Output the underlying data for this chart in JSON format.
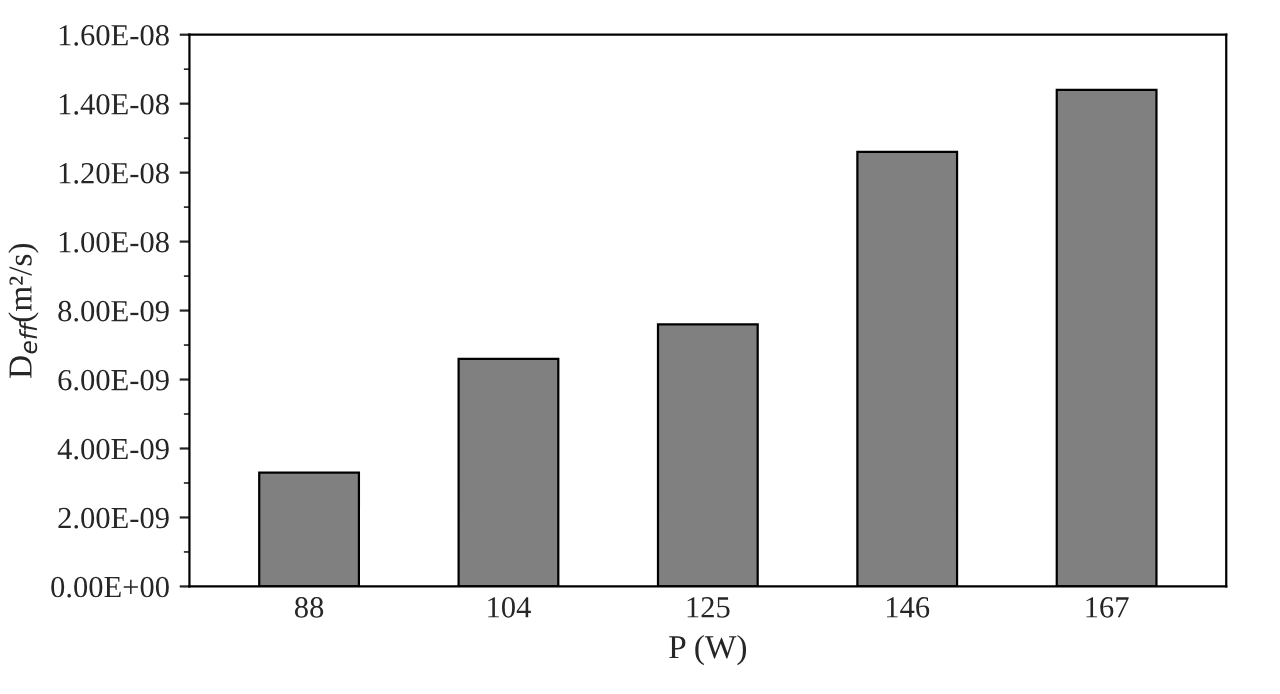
{
  "chart_data": {
    "type": "bar",
    "xlabel": "P (W)",
    "ylabel": "D$_{eff}$(m²/s)",
    "categories": [
      "88",
      "104",
      "125",
      "146",
      "167"
    ],
    "values": [
      3.3e-09,
      6.6e-09,
      7.6e-09,
      1.26e-08,
      1.44e-08
    ],
    "color": "#808080",
    "ylim": [
      0,
      1.6e-08
    ],
    "yticks": [
      {
        "value": 0,
        "label": "0.00E+00"
      },
      {
        "value": 2e-09,
        "label": "2.00E-09"
      },
      {
        "value": 4e-09,
        "label": "4.00E-09"
      },
      {
        "value": 6e-09,
        "label": "6.00E-09"
      },
      {
        "value": 8e-09,
        "label": "8.00E-09"
      },
      {
        "value": 1e-08,
        "label": "1.00E-08"
      },
      {
        "value": 1.2e-08,
        "label": "1.20E-08"
      },
      {
        "value": 1.4e-08,
        "label": "1.40E-08"
      },
      {
        "value": 1.6e-08,
        "label": "1.60E-08"
      }
    ],
    "grid": false
  }
}
